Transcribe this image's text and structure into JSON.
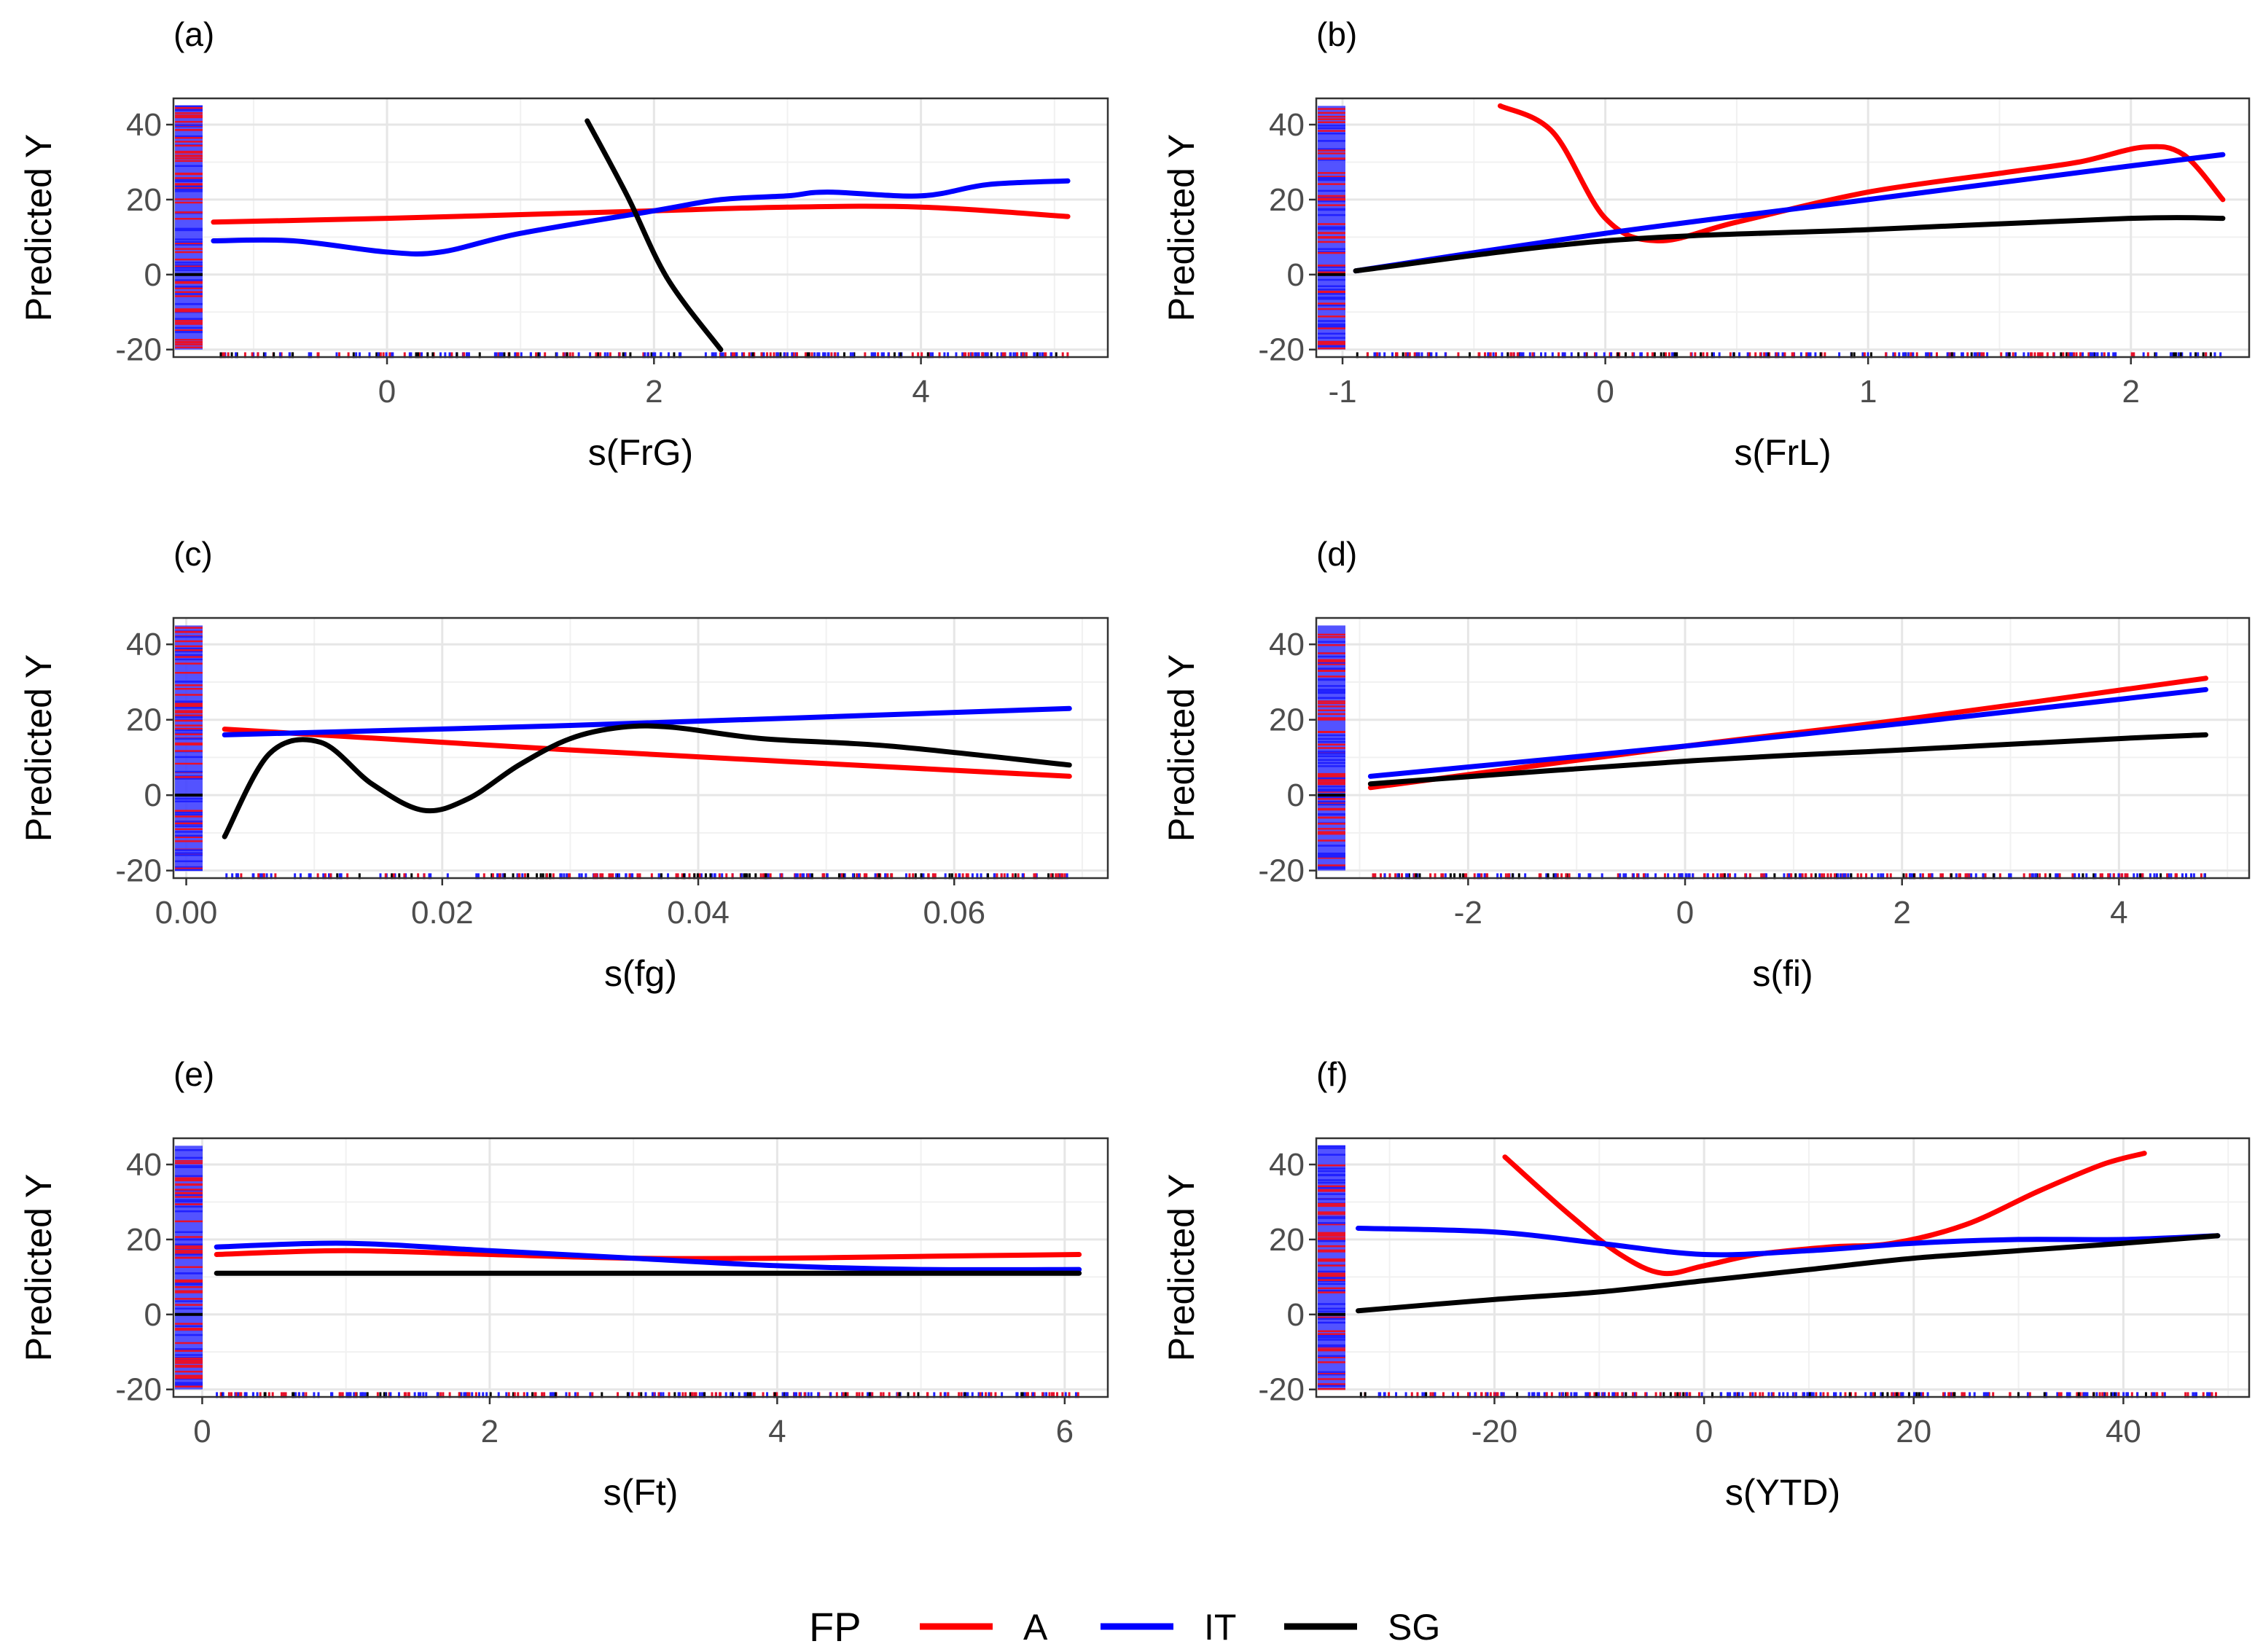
{
  "chart_data": [
    {
      "type": "line",
      "panel": "(a)",
      "xlabel": "s(FrG)",
      "ylabel": "Predicted Y",
      "xlim": [
        -1.6,
        5.4
      ],
      "ylim": [
        -22,
        47
      ],
      "xticks": [
        0,
        2,
        4
      ],
      "xtick_labels": [
        "0",
        "2",
        "4"
      ],
      "yticks": [
        -20,
        0,
        20,
        40
      ],
      "ytick_labels": [
        "-20",
        "0",
        "20",
        "40"
      ],
      "series": [
        {
          "name": "A",
          "x": [
            -1.3,
            0,
            1,
            2,
            3,
            4,
            5.1
          ],
          "y": [
            14,
            15,
            16,
            17,
            18,
            18,
            15.5
          ]
        },
        {
          "name": "IT",
          "x": [
            -1.3,
            -0.7,
            0,
            0.4,
            1,
            2,
            2.5,
            3,
            3.3,
            4,
            4.5,
            5.1
          ],
          "y": [
            9,
            9,
            6,
            6,
            11,
            17,
            20,
            21,
            22,
            21,
            24,
            25
          ]
        },
        {
          "name": "SG",
          "x": [
            1.5,
            1.8,
            2.1,
            2.5
          ],
          "y": [
            41,
            21,
            -1,
            -20
          ]
        }
      ]
    },
    {
      "type": "line",
      "panel": "(b)",
      "xlabel": "s(FrL)",
      "ylabel": "Predicted Y",
      "xlim": [
        -1.1,
        2.45
      ],
      "ylim": [
        -22,
        47
      ],
      "xticks": [
        -1,
        0,
        1,
        2
      ],
      "xtick_labels": [
        "-1",
        "0",
        "1",
        "2"
      ],
      "yticks": [
        -20,
        0,
        20,
        40
      ],
      "ytick_labels": [
        "-20",
        "0",
        "20",
        "40"
      ],
      "series": [
        {
          "name": "A",
          "x": [
            -0.4,
            -0.2,
            0,
            0.2,
            0.5,
            1,
            1.5,
            1.8,
            2.05,
            2.2,
            2.35
          ],
          "y": [
            45,
            38,
            15,
            9,
            14,
            22,
            27,
            30,
            34,
            32,
            20
          ]
        },
        {
          "name": "IT",
          "x": [
            -0.95,
            0,
            1,
            2,
            2.35
          ],
          "y": [
            1,
            11,
            20,
            29,
            32
          ]
        },
        {
          "name": "SG",
          "x": [
            -0.95,
            0,
            1,
            2,
            2.35
          ],
          "y": [
            1,
            9,
            12,
            15,
            15
          ]
        }
      ]
    },
    {
      "type": "line",
      "panel": "(c)",
      "xlabel": "s(fg)",
      "ylabel": "Predicted Y",
      "xlim": [
        -0.001,
        0.072
      ],
      "ylim": [
        -22,
        47
      ],
      "xticks": [
        0,
        0.02,
        0.04,
        0.06
      ],
      "xtick_labels": [
        "0.00",
        "0.02",
        "0.04",
        "0.06"
      ],
      "yticks": [
        -20,
        0,
        20,
        40
      ],
      "ytick_labels": [
        "-20",
        "0",
        "20",
        "40"
      ],
      "series": [
        {
          "name": "A",
          "x": [
            0.003,
            0.03,
            0.069
          ],
          "y": [
            17.5,
            12,
            5
          ]
        },
        {
          "name": "IT",
          "x": [
            0.003,
            0.03,
            0.069
          ],
          "y": [
            16,
            18.5,
            23
          ]
        },
        {
          "name": "SG",
          "x": [
            0.003,
            0.0065,
            0.0105,
            0.0145,
            0.0185,
            0.022,
            0.026,
            0.03,
            0.034,
            0.038,
            0.045,
            0.055,
            0.069
          ],
          "y": [
            -11,
            11,
            14,
            3,
            -4,
            -1,
            8,
            15,
            18,
            18,
            15,
            13,
            8
          ]
        }
      ]
    },
    {
      "type": "line",
      "panel": "(d)",
      "xlabel": "s(fi)",
      "ylabel": "Predicted Y",
      "xlim": [
        -3.4,
        5.2
      ],
      "ylim": [
        -22,
        47
      ],
      "xticks": [
        -2,
        0,
        2,
        4
      ],
      "xtick_labels": [
        "-2",
        "0",
        "2",
        "4"
      ],
      "yticks": [
        -20,
        0,
        20,
        40
      ],
      "ytick_labels": [
        "-20",
        "0",
        "20",
        "40"
      ],
      "series": [
        {
          "name": "A",
          "x": [
            -2.9,
            0,
            2,
            4.8
          ],
          "y": [
            2,
            13,
            20,
            31
          ]
        },
        {
          "name": "IT",
          "x": [
            -2.9,
            0,
            2,
            4.8
          ],
          "y": [
            5,
            13,
            19,
            28
          ]
        },
        {
          "name": "SG",
          "x": [
            -2.9,
            0,
            2,
            4,
            4.8
          ],
          "y": [
            3,
            9,
            12,
            15,
            16
          ]
        }
      ]
    },
    {
      "type": "line",
      "panel": "(e)",
      "xlabel": "s(Ft)",
      "ylabel": "Predicted Y",
      "xlim": [
        -0.2,
        6.3
      ],
      "ylim": [
        -22,
        47
      ],
      "xticks": [
        0,
        2,
        4,
        6
      ],
      "xtick_labels": [
        "0",
        "2",
        "4",
        "6"
      ],
      "yticks": [
        -20,
        0,
        20,
        40
      ],
      "ytick_labels": [
        "-20",
        "0",
        "20",
        "40"
      ],
      "series": [
        {
          "name": "A",
          "x": [
            0.1,
            1,
            2,
            3,
            4,
            5,
            6.1
          ],
          "y": [
            16,
            17,
            16,
            15,
            15,
            15.5,
            16
          ]
        },
        {
          "name": "IT",
          "x": [
            0.1,
            1,
            2,
            3,
            4,
            5,
            6.1
          ],
          "y": [
            18,
            19,
            17,
            15,
            13,
            12,
            12
          ]
        },
        {
          "name": "SG",
          "x": [
            0.1,
            6.1
          ],
          "y": [
            11,
            11
          ]
        }
      ]
    },
    {
      "type": "line",
      "panel": "(f)",
      "xlabel": "s(YTD)",
      "ylabel": "Predicted Y",
      "xlim": [
        -37,
        52
      ],
      "ylim": [
        -22,
        47
      ],
      "xticks": [
        -20,
        0,
        20,
        40
      ],
      "xtick_labels": [
        "-20",
        "0",
        "20",
        "40"
      ],
      "yticks": [
        -20,
        0,
        20,
        40
      ],
      "ytick_labels": [
        "-20",
        "0",
        "20",
        "40"
      ],
      "series": [
        {
          "name": "A",
          "x": [
            -19,
            -13,
            -8,
            -4,
            0,
            5,
            12,
            18,
            25,
            32,
            38,
            42
          ],
          "y": [
            42,
            27,
            16,
            11,
            13,
            16,
            18,
            19,
            24,
            33,
            40,
            43
          ]
        },
        {
          "name": "IT",
          "x": [
            -33,
            -20,
            -10,
            0,
            10,
            20,
            30,
            40,
            49
          ],
          "y": [
            23,
            22,
            19,
            16,
            17,
            19,
            20,
            20,
            21
          ]
        },
        {
          "name": "SG",
          "x": [
            -33,
            -20,
            -10,
            0,
            10,
            20,
            30,
            40,
            49
          ],
          "y": [
            1,
            4,
            6,
            9,
            12,
            15,
            17,
            19,
            21
          ]
        }
      ]
    }
  ],
  "legend": {
    "title": "FP",
    "entries": [
      {
        "name": "A",
        "label": "A"
      },
      {
        "name": "IT",
        "label": "IT"
      },
      {
        "name": "SG",
        "label": "SG"
      }
    ]
  },
  "colors": {
    "A": "#ff0000",
    "IT": "#0000ff",
    "SG": "#000000"
  }
}
